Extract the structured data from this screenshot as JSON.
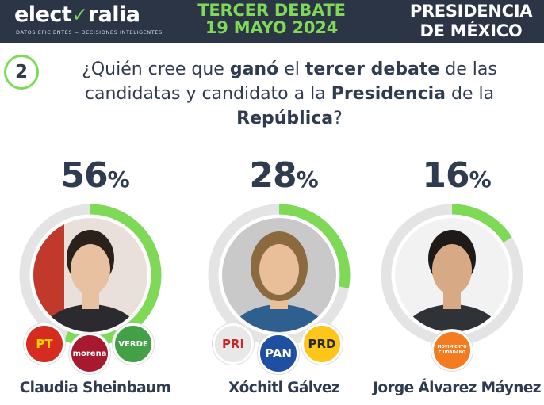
{
  "header": {
    "logo_before": "elect",
    "logo_mark": "✓",
    "logo_after": "ralia",
    "tagline": "DATOS EFICIENTES = DECISIONES INTELIGENTES",
    "debate_line1": "TERCER DEBATE",
    "debate_line2": "19 MAYO 2024",
    "pres_line1": "PRESIDENCIA",
    "pres_line2": "DE MÉXICO"
  },
  "question": {
    "number": "2",
    "p1": "¿Quién cree que ",
    "b1": "ganó",
    "p2": " el ",
    "b2": "tercer debate",
    "p3": " de las candidatas y candidato a la ",
    "b3": "Presidencia",
    "p4": " de la ",
    "b4": "República",
    "p5": "?"
  },
  "colors": {
    "accent": "#7ed957",
    "track": "#e4e4e4",
    "text": "#2f3b4f",
    "header_bg": "#2b3546"
  },
  "chart_data": {
    "type": "pie",
    "categories": [
      "Claudia Sheinbaum",
      "Xóchitl Gálvez",
      "Jorge Álvarez Máynez"
    ],
    "values": [
      56,
      28,
      16
    ],
    "percent_symbol": "%"
  },
  "candidates": [
    {
      "name": "Claudia Sheinbaum",
      "parties": [
        {
          "label": "PT",
          "color": "#d62b1f",
          "text_color": "#ffd200"
        },
        {
          "label": "morena",
          "color": "#a6192e",
          "text_color": "#ffffff"
        },
        {
          "label": "VERDE",
          "color": "#43a047",
          "text_color": "#ffffff"
        }
      ]
    },
    {
      "name": "Xóchitl Gálvez",
      "parties": [
        {
          "label": "PRI",
          "color": "#e8e8e8",
          "text_color": "#c62828"
        },
        {
          "label": "PAN",
          "color": "#1f4fa3",
          "text_color": "#ffffff"
        },
        {
          "label": "PRD",
          "color": "#ffc61a",
          "text_color": "#2b2b2b"
        }
      ]
    },
    {
      "name": "Jorge Álvarez Máynez",
      "parties": [
        {
          "label": "MOVIMIENTO CIUDADANO",
          "color": "#f47b20",
          "text_color": "#ffffff"
        }
      ]
    }
  ]
}
